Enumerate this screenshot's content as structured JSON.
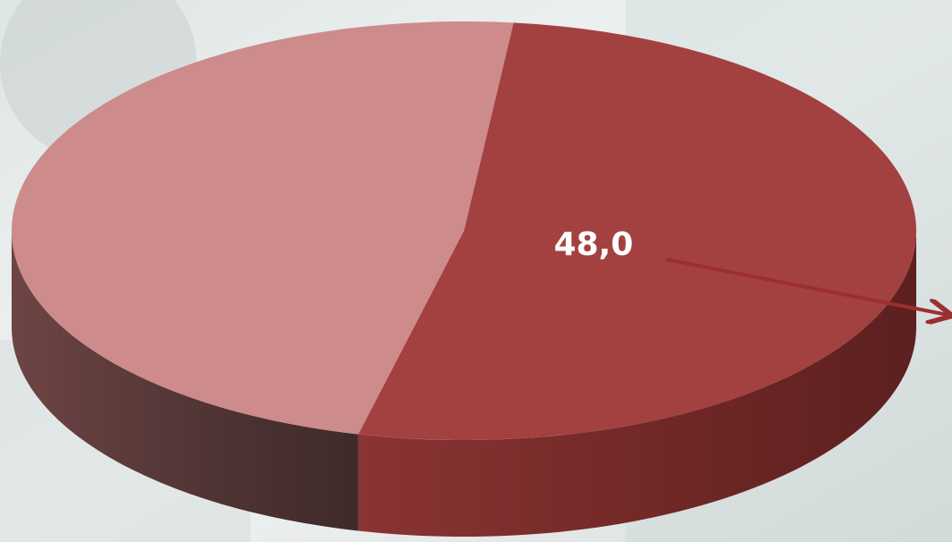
{
  "chart_data": {
    "type": "pie",
    "style": "3d",
    "slices": [
      {
        "value": 52.0,
        "color": "#a34140",
        "side_color": "#6e2a29"
      },
      {
        "value": 48.0,
        "color": "#cd8b8b",
        "side_color": "#533838",
        "label": "48,0"
      }
    ],
    "label_color": "#ffffff",
    "arrow_color": "#9b2f2f"
  }
}
